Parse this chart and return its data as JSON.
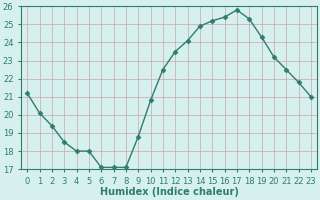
{
  "title": "",
  "xlabel": "Humidex (Indice chaleur)",
  "ylabel": "",
  "x": [
    0,
    1,
    2,
    3,
    4,
    5,
    6,
    7,
    8,
    9,
    10,
    11,
    12,
    13,
    14,
    15,
    16,
    17,
    18,
    19,
    20,
    21,
    22,
    23
  ],
  "y": [
    21.2,
    20.1,
    19.4,
    18.5,
    18.0,
    18.0,
    17.1,
    17.1,
    17.1,
    18.8,
    20.8,
    22.5,
    23.5,
    24.1,
    24.9,
    25.2,
    25.4,
    25.8,
    25.3,
    24.3,
    23.2,
    22.5,
    21.8,
    21.0
  ],
  "line_color": "#2e7d6e",
  "marker": "D",
  "marker_size": 2.5,
  "bg_color": "#d6f0ed",
  "grid_major_color": "#c8a8a8",
  "grid_minor_color": "#c8a8a8",
  "ylim": [
    17,
    26
  ],
  "xlim": [
    -0.5,
    23.5
  ],
  "yticks": [
    17,
    18,
    19,
    20,
    21,
    22,
    23,
    24,
    25,
    26
  ],
  "xticks": [
    0,
    1,
    2,
    3,
    4,
    5,
    6,
    7,
    8,
    9,
    10,
    11,
    12,
    13,
    14,
    15,
    16,
    17,
    18,
    19,
    20,
    21,
    22,
    23
  ],
  "tick_label_size": 6,
  "xlabel_size": 7,
  "tick_color": "#2e7d6e",
  "label_color": "#2e7d6e",
  "spine_color": "#2e7d6e"
}
